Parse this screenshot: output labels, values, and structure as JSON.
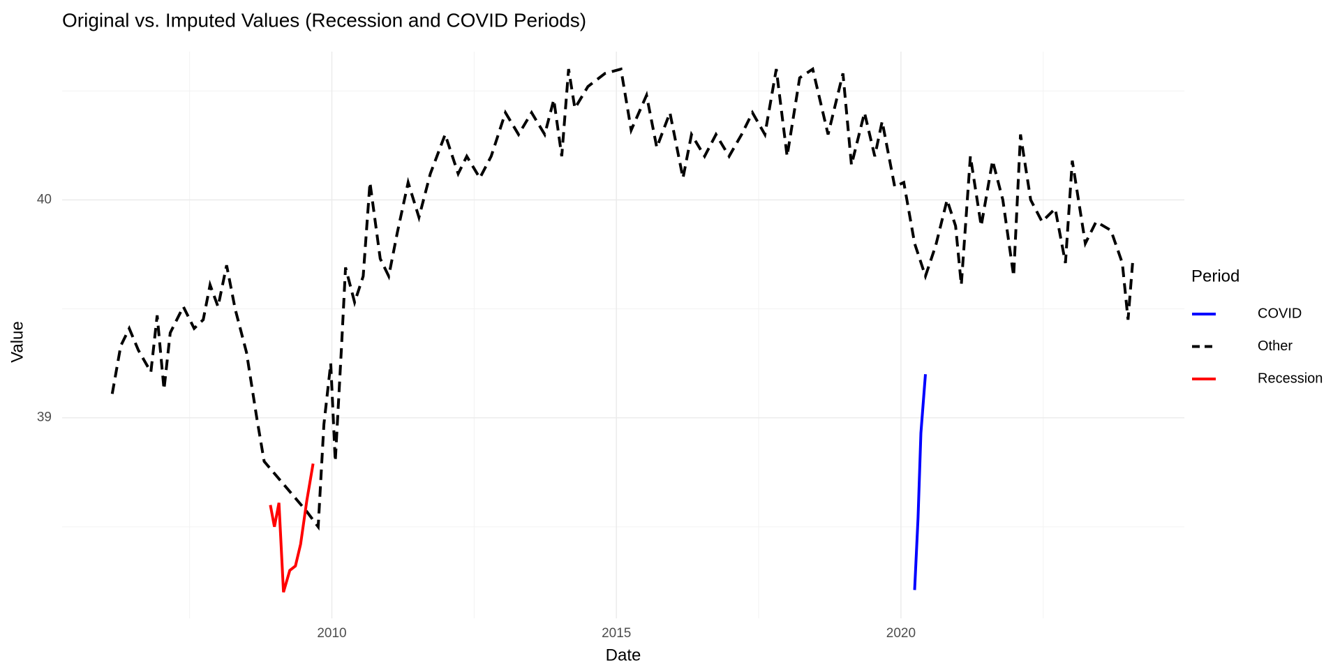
{
  "chart_data": {
    "type": "line",
    "title": "Original vs. Imputed Values (Recession and COVID Periods)",
    "x_label": "Date",
    "y_label": "Value",
    "legend_title": "Period",
    "xlim": [
      2005.26,
      2024.98
    ],
    "xticks": [
      2010,
      2015,
      2020
    ],
    "ylim": [
      38.08,
      40.68
    ],
    "yticks": [
      39,
      40
    ],
    "grid": true,
    "legend_position": "right",
    "series": [
      {
        "name": "COVID",
        "color": "#0000ff",
        "linetype": "solid",
        "x": [
          2020.24,
          2020.3,
          2020.35,
          2020.43
        ],
        "values": [
          38.21,
          38.54,
          38.93,
          39.2
        ]
      },
      {
        "name": "Other",
        "color": "#000000",
        "linetype": "dashed",
        "x": [
          2006.14,
          2006.29,
          2006.44,
          2006.6,
          2006.82,
          2006.93,
          2007.05,
          2007.16,
          2007.39,
          2007.58,
          2007.74,
          2007.86,
          2008.0,
          2008.15,
          2008.3,
          2008.5,
          2008.68,
          2008.81,
          2009.56,
          2009.76,
          2009.86,
          2009.98,
          2010.06,
          2010.17,
          2010.24,
          2010.4,
          2010.55,
          2010.67,
          2010.85,
          2011.0,
          2011.15,
          2011.34,
          2011.53,
          2011.73,
          2011.99,
          2012.22,
          2012.37,
          2012.6,
          2012.8,
          2013.05,
          2013.28,
          2013.51,
          2013.74,
          2013.9,
          2014.04,
          2014.16,
          2014.27,
          2014.5,
          2014.8,
          2015.08,
          2015.26,
          2015.53,
          2015.71,
          2015.94,
          2016.17,
          2016.32,
          2016.55,
          2016.75,
          2016.98,
          2017.2,
          2017.39,
          2017.61,
          2017.81,
          2018.0,
          2018.22,
          2018.45,
          2018.72,
          2018.98,
          2019.13,
          2019.36,
          2019.54,
          2019.67,
          2019.89,
          2020.05,
          2020.24,
          2020.43,
          2020.61,
          2020.81,
          2020.96,
          2021.06,
          2021.22,
          2021.41,
          2021.61,
          2021.79,
          2021.98,
          2022.1,
          2022.28,
          2022.48,
          2022.71,
          2022.89,
          2023.01,
          2023.24,
          2023.43,
          2023.69,
          2023.89,
          2023.99,
          2024.07
        ],
        "values": [
          39.11,
          39.33,
          39.41,
          39.31,
          39.21,
          39.47,
          39.13,
          39.39,
          39.51,
          39.41,
          39.45,
          39.61,
          39.51,
          39.7,
          39.5,
          39.3,
          39.0,
          38.8,
          38.57,
          38.5,
          38.97,
          39.25,
          38.8,
          39.33,
          39.69,
          39.53,
          39.65,
          40.08,
          39.73,
          39.65,
          39.85,
          40.08,
          39.92,
          40.12,
          40.3,
          40.12,
          40.2,
          40.1,
          40.2,
          40.4,
          40.3,
          40.4,
          40.3,
          40.46,
          40.2,
          40.6,
          40.42,
          40.52,
          40.58,
          40.6,
          40.32,
          40.48,
          40.24,
          40.4,
          40.1,
          40.3,
          40.2,
          40.3,
          40.2,
          40.3,
          40.4,
          40.3,
          40.6,
          40.2,
          40.56,
          40.6,
          40.3,
          40.58,
          40.16,
          40.4,
          40.2,
          40.36,
          40.06,
          40.08,
          39.8,
          39.65,
          39.79,
          40.0,
          39.88,
          39.61,
          40.2,
          39.88,
          40.18,
          40.0,
          39.65,
          40.3,
          40.0,
          39.9,
          39.96,
          39.71,
          40.18,
          39.8,
          39.9,
          39.86,
          39.71,
          39.45,
          39.71
        ]
      },
      {
        "name": "Recession",
        "color": "#ff0000",
        "linetype": "solid",
        "x": [
          2008.92,
          2008.99,
          2009.07,
          2009.15,
          2009.26,
          2009.36,
          2009.45,
          2009.56,
          2009.67
        ],
        "values": [
          38.6,
          38.5,
          38.61,
          38.2,
          38.3,
          38.32,
          38.42,
          38.62,
          38.79
        ]
      }
    ]
  }
}
